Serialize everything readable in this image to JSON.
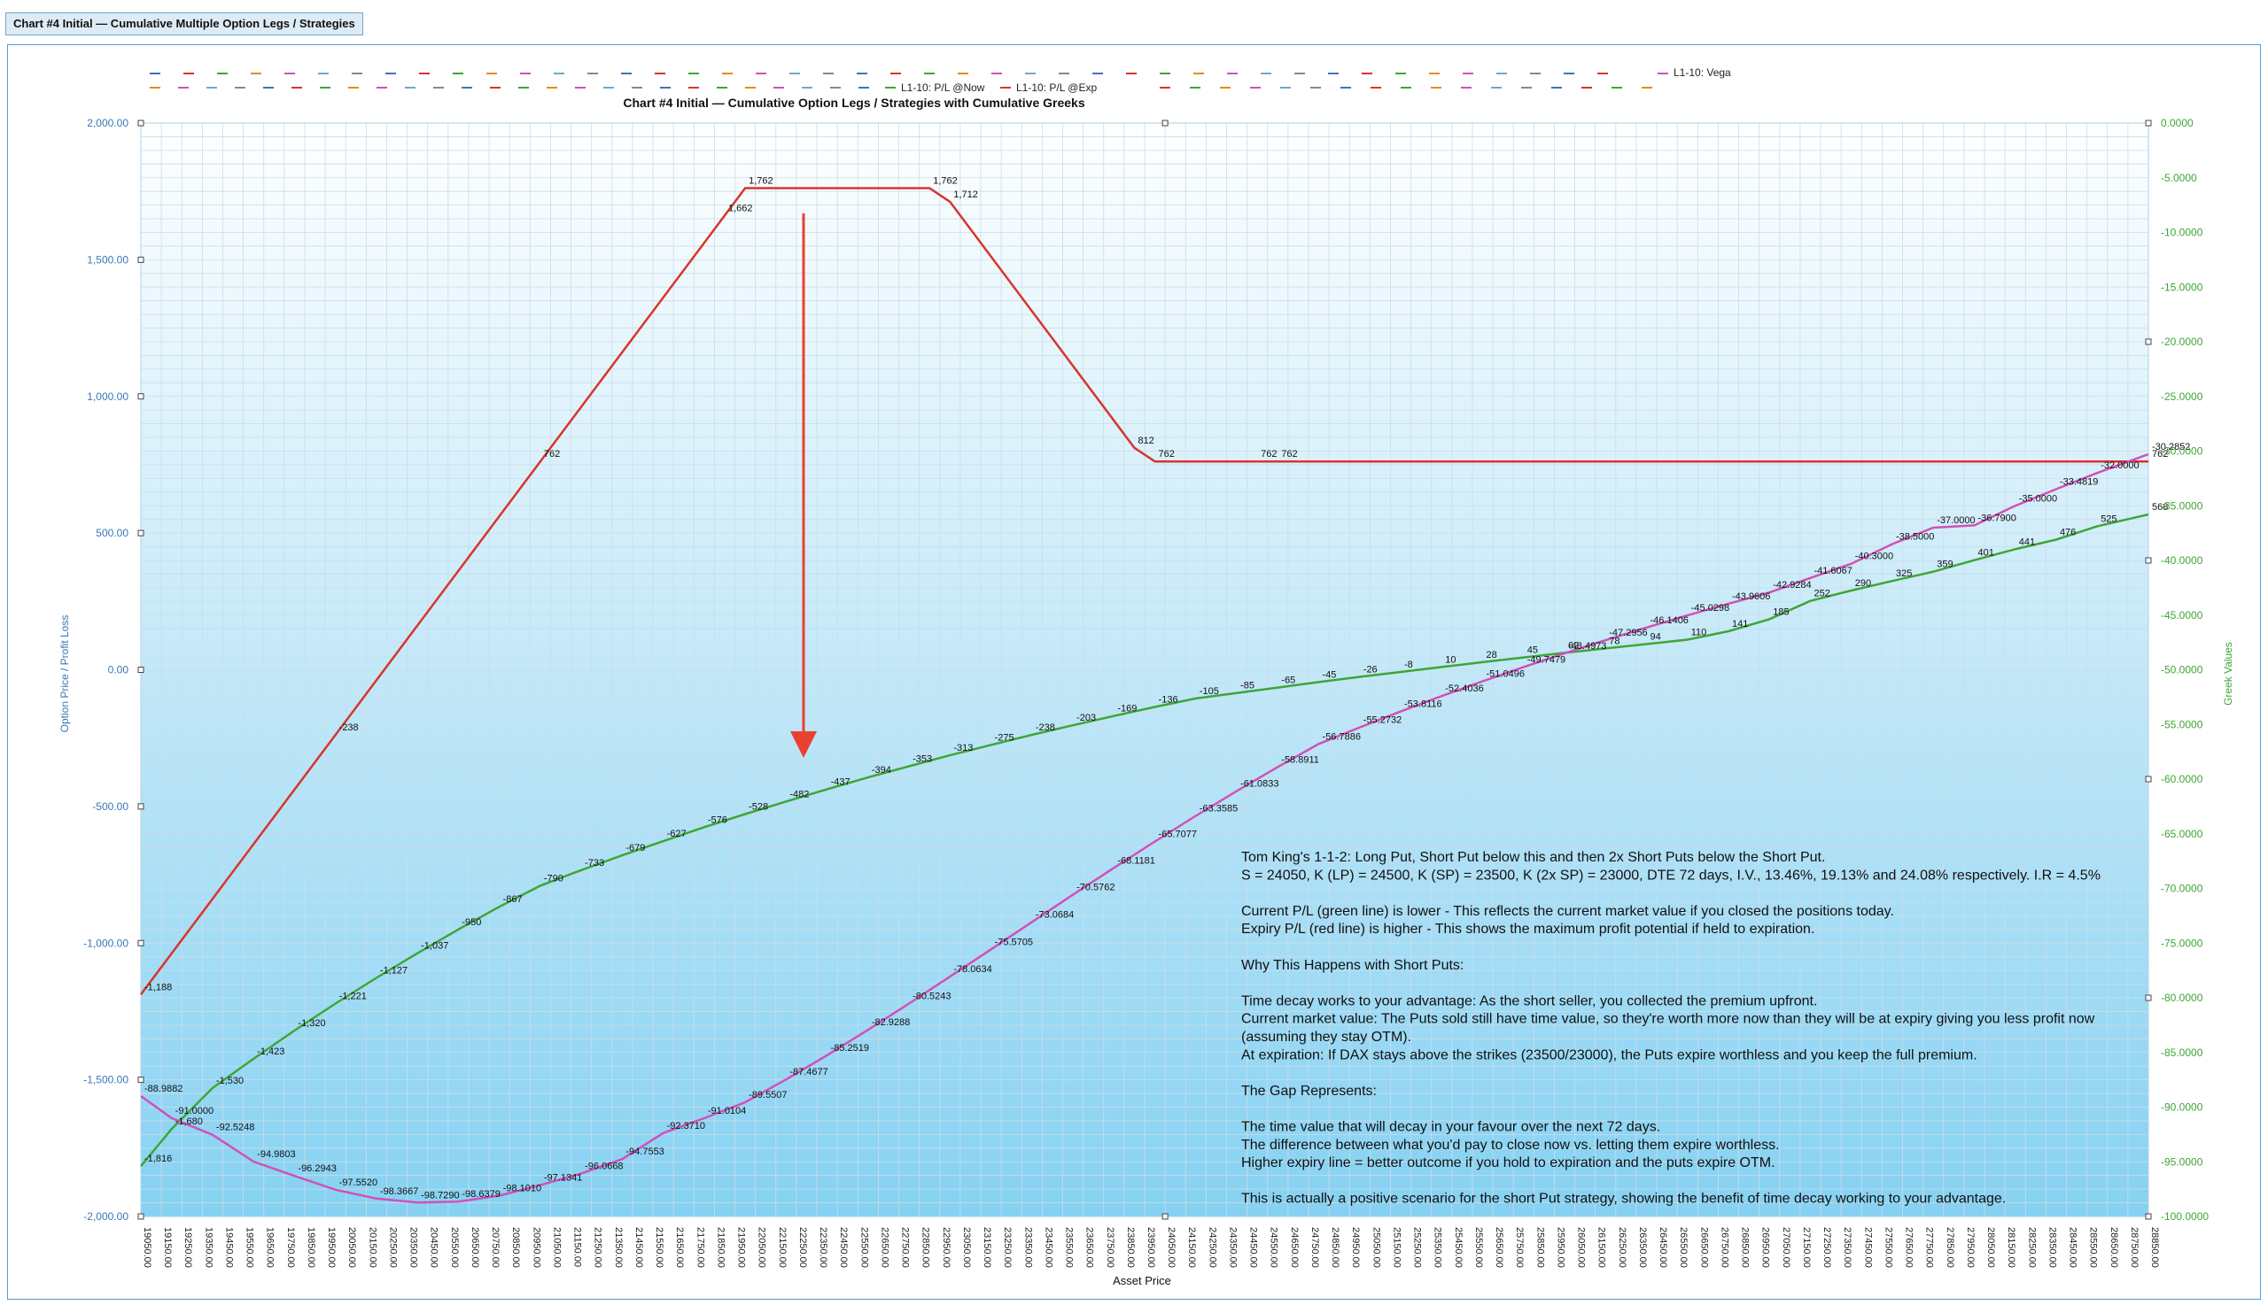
{
  "window": {
    "title": "Chart #4 Initial — Cumulative Multiple Option Legs / Strategies"
  },
  "legend": {
    "vega": "L1-10: Vega",
    "pl_now": "L1-10: P/L @Now",
    "pl_exp": "L1-10: P/L @Exp"
  },
  "colors": {
    "pl_now": "#3fa535",
    "pl_exp": "#d9342b",
    "vega": "#d150b8",
    "axis_left": "#3a77b5",
    "axis_right": "#3fa535",
    "arrow": "#e8412f"
  },
  "annotation_lines": [
    "Tom King's 1-1-2: Long Put, Short Put below this and then 2x Short Puts below the Short Put.",
    "S = 24050, K (LP) = 24500, K (SP) = 23500, K (2x SP) = 23000, DTE 72 days, I.V., 13.46%, 19.13% and 24.08% respectively. I.R = 4.5%",
    "",
    "Current P/L (green line) is lower - This reflects the current market value if you closed the positions today.",
    "Expiry P/L (red line) is higher - This shows the maximum profit potential if held to expiration.",
    "",
    "Why This Happens with Short Puts:",
    "",
    "Time decay works to your advantage: As the short seller, you collected the premium upfront.",
    "Current market value: The Puts sold still have time value, so they're worth more now than they will be at expiry giving you less profit now",
    "(assuming they stay OTM).",
    "At expiration: If DAX stays above the strikes (23500/23000), the Puts expire worthless and you keep the full premium.",
    "",
    "The Gap Represents:",
    "",
    "The time value that will decay in your favour over the next 72 days.",
    "The difference between what you'd pay to close now vs. letting them expire worthless.",
    "Higher expiry line = better outcome if you hold to expiration and the puts expire OTM.",
    "",
    "This is actually a positive scenario for the short Put strategy, showing the benefit of time decay working to your advantage."
  ],
  "chart_data": {
    "type": "line",
    "title": "Chart #4 Initial — Cumulative Option Legs / Strategies with Cumulative Greeks",
    "xlabel": "Asset Price",
    "ylabel": "Option Price / Profit Loss",
    "y2label": "Greek Values",
    "ylim": [
      -2000,
      2000
    ],
    "y2lim": [
      -100,
      0
    ],
    "yticks": [
      "2,000.00",
      "1,500.00",
      "1,000.00",
      "500.00",
      "0.00",
      "-500.00",
      "-1,000.00",
      "-1,500.00",
      "-2,000.00"
    ],
    "y2ticks": [
      "0.0000",
      "-5.0000",
      "-10.0000",
      "-15.0000",
      "-20.0000",
      "-25.0000",
      "-30.0000",
      "-35.0000",
      "-40.0000",
      "-45.0000",
      "-50.0000",
      "-55.0000",
      "-60.0000",
      "-65.0000",
      "-70.0000",
      "-75.0000",
      "-80.0000",
      "-85.0000",
      "-90.0000",
      "-95.0000",
      "-100.0000"
    ],
    "xlim": [
      19050,
      28850
    ],
    "xstep": 100,
    "grid": true,
    "legend_position": "top",
    "series": [
      {
        "name": "L1-10: P/L @Exp",
        "axis": "left",
        "x": [
          19050,
          20000,
          21000,
          21900,
          22000,
          22900,
          23000,
          23900,
          24000,
          24500,
          24600,
          28850
        ],
        "y": [
          -1188,
          -238,
          762,
          1662,
          1762,
          1762,
          1712,
          812,
          762,
          762,
          762,
          762
        ],
        "labels_every": 1
      },
      {
        "name": "L1-10: P/L @Now",
        "axis": "left",
        "x": [
          19050,
          19200,
          19400,
          19600,
          19800,
          20000,
          20200,
          20400,
          20600,
          20800,
          21000,
          21200,
          21400,
          21600,
          21800,
          22000,
          22200,
          22400,
          22600,
          22800,
          23000,
          23200,
          23400,
          23600,
          23800,
          24000,
          24200,
          24400,
          24600,
          24800,
          25000,
          25200,
          25400,
          25600,
          25800,
          26000,
          26200,
          26400,
          26600,
          26800,
          27000,
          27200,
          27400,
          27600,
          27800,
          28000,
          28200,
          28400,
          28600,
          28850
        ],
        "y": [
          -1816,
          -1680,
          -1530,
          -1423,
          -1320,
          -1221,
          -1127,
          -1037,
          -950,
          -867,
          -790,
          -733,
          -679,
          -627,
          -576,
          -528,
          -482,
          -437,
          -394,
          -353,
          -313,
          -275,
          -238,
          -203,
          -169,
          -136,
          -105,
          -85,
          -65,
          -45,
          -26,
          -8,
          10,
          28,
          45,
          62,
          78,
          94,
          110,
          141,
          185,
          252,
          290,
          325,
          359,
          401,
          441,
          476,
          525,
          568
        ]
      },
      {
        "name": "L1-10: Vega",
        "axis": "right",
        "x": [
          19050,
          19200,
          19400,
          19600,
          19800,
          20000,
          20200,
          20400,
          20600,
          20800,
          21000,
          21200,
          21400,
          21600,
          21800,
          22000,
          22200,
          22400,
          22600,
          22800,
          23000,
          23200,
          23400,
          23600,
          23800,
          24000,
          24200,
          24400,
          24600,
          24800,
          25000,
          25200,
          25400,
          25600,
          25800,
          26000,
          26200,
          26400,
          26600,
          26800,
          27000,
          27200,
          27400,
          27600,
          27800,
          28000,
          28200,
          28400,
          28600,
          28850
        ],
        "y": [
          -88.9882,
          -91.0,
          -92.5248,
          -94.9803,
          -96.2943,
          -97.552,
          -98.3667,
          -98.729,
          -98.6379,
          -98.101,
          -97.1341,
          -96.0668,
          -94.7553,
          -92.371,
          -91.0104,
          -89.5507,
          -87.4677,
          -85.2519,
          -82.9288,
          -80.5243,
          -78.0634,
          -75.5705,
          -73.0684,
          -70.5762,
          -68.1181,
          -65.7077,
          -63.3585,
          -61.0833,
          -58.8911,
          -56.7886,
          -55.2732,
          -53.8116,
          -52.4036,
          -51.0496,
          -49.7479,
          -48.4973,
          -47.2956,
          -46.1406,
          -45.0298,
          -43.9606,
          -42.9284,
          -41.6067,
          -40.3,
          -38.5,
          -37.0,
          -36.79,
          -35.0,
          -33.4819,
          -32.0,
          -30.2852
        ]
      }
    ]
  }
}
